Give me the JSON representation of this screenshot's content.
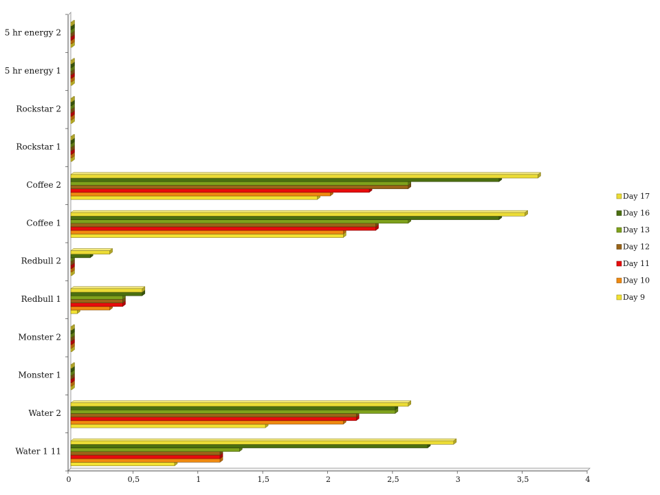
{
  "chart_data": {
    "type": "bar",
    "orientation": "horizontal",
    "style": "3d-clustered",
    "categories": [
      "Water 1 11",
      "Water 2",
      "Monster 1",
      "Monster 2",
      "Redbull 1",
      "Redbull 2",
      "Coffee 1",
      "Coffee 2",
      "Rockstar 1",
      "Rockstar 2",
      "5 hr energy 1",
      "5 hr energy 2"
    ],
    "series": [
      {
        "name": "Day 9",
        "color": "#f2e233",
        "values": [
          0.8,
          1.5,
          0,
          0,
          0.05,
          0,
          2.1,
          1.9,
          0,
          0,
          0,
          0
        ]
      },
      {
        "name": "Day 10",
        "color": "#f08a10",
        "values": [
          1.15,
          2.1,
          0,
          0,
          0.3,
          0,
          2.1,
          2.0,
          0,
          0,
          0,
          0
        ]
      },
      {
        "name": "Day 11",
        "color": "#e80c0c",
        "values": [
          1.15,
          2.2,
          0,
          0,
          0.4,
          0,
          2.35,
          2.3,
          0,
          0,
          0,
          0
        ]
      },
      {
        "name": "Day 12",
        "color": "#9a6418",
        "values": [
          1.15,
          2.2,
          0,
          0,
          0.4,
          0,
          2.35,
          2.6,
          0,
          0,
          0,
          0
        ]
      },
      {
        "name": "Day 13",
        "color": "#7fa21c",
        "values": [
          1.3,
          2.5,
          0,
          0,
          0.4,
          0,
          2.6,
          2.6,
          0,
          0,
          0,
          0
        ]
      },
      {
        "name": "Day 16",
        "color": "#4b6f10",
        "values": [
          2.75,
          2.5,
          0,
          0,
          0.55,
          0.15,
          3.3,
          3.3,
          0,
          0,
          0,
          0
        ]
      },
      {
        "name": "Day 17",
        "color": "#ecdc36",
        "values": [
          2.95,
          2.6,
          0,
          0,
          0.55,
          0.3,
          3.5,
          3.6,
          0,
          0,
          0,
          0
        ]
      }
    ],
    "xlim": [
      0,
      4
    ],
    "x_ticks": [
      "0",
      "0,5",
      "1",
      "1,5",
      "2",
      "2,5",
      "3",
      "3,5",
      "4"
    ],
    "legend": {
      "placement": "right",
      "order": [
        "Day 17",
        "Day 16",
        "Day 13",
        "Day 12",
        "Day 11",
        "Day 10",
        "Day 9"
      ]
    },
    "grid": false
  }
}
